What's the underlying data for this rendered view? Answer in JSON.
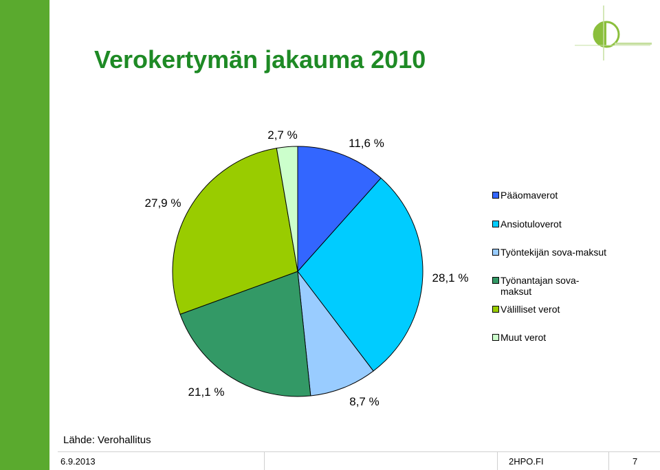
{
  "slide": {
    "title": "Verokertymän jakauma 2010",
    "source": "Lähde: Verohallitus",
    "footer": {
      "date": "6.9.2013",
      "site": "2HPO.FI",
      "page": "7"
    }
  },
  "colors": {
    "sidebar": "#5aaa2e",
    "title": "#1e8a25",
    "logo": "#8bbf3c"
  },
  "chart_data": {
    "type": "pie",
    "title": "",
    "legend_position": "right",
    "start_angle_deg": 0,
    "direction": "clockwise",
    "slices": [
      {
        "label": "Pääomaverot",
        "value": 11.6,
        "value_label": "11,6 %",
        "color": "#3366ff"
      },
      {
        "label": "Ansiotuloverot",
        "value": 28.1,
        "value_label": "28,1 %",
        "color": "#00ccff"
      },
      {
        "label": "Työntekijän sova-maksut",
        "value": 8.7,
        "value_label": "8,7 %",
        "color": "#99ccff"
      },
      {
        "label": "Työnantajan sova-\nmaksut",
        "value": 21.1,
        "value_label": "21,1 %",
        "color": "#339966"
      },
      {
        "label": "Välilliset verot",
        "value": 27.9,
        "value_label": "27,9 %",
        "color": "#99cc00"
      },
      {
        "label": "Muut verot",
        "value": 2.7,
        "value_label": "2,7 %",
        "color": "#ccffcc"
      }
    ]
  }
}
